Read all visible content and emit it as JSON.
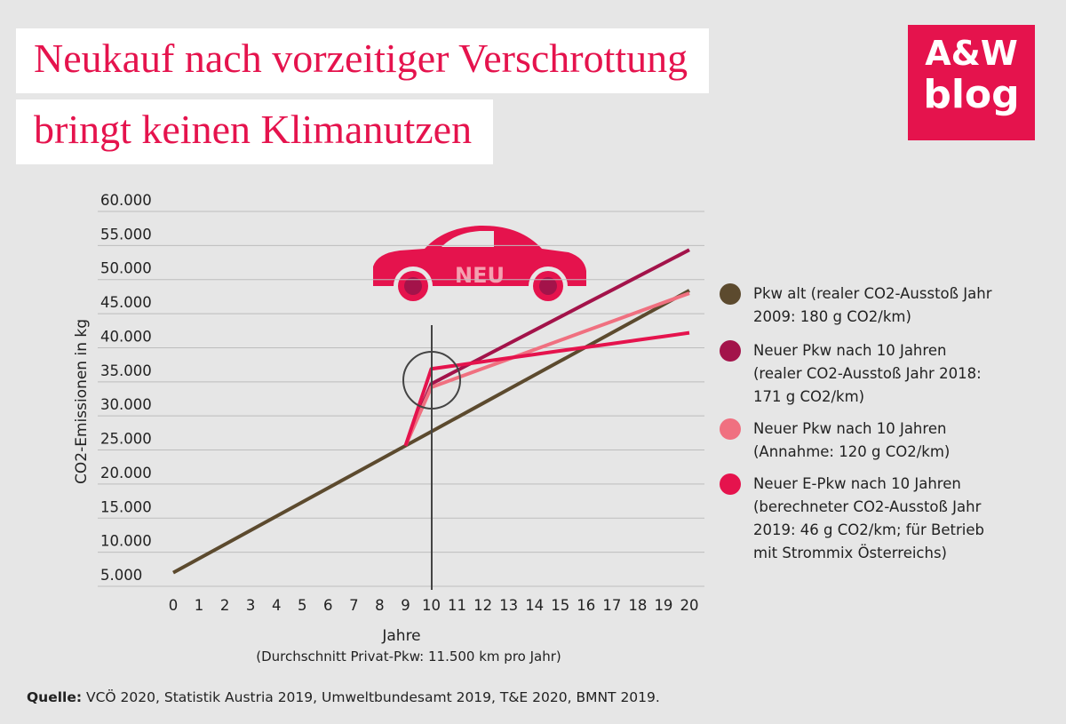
{
  "chart_data": {
    "type": "line",
    "title": "Neukauf nach vorzeitiger Verschrottung bringt keinen Klimanutzen",
    "y_label": "CO2-Emissionen in kg",
    "x_label": "Jahre",
    "x_sublabel": "(Durchschnitt Privat-Pkw: 11.500 km pro Jahr)",
    "annotations": [
      "NEU"
    ],
    "x": [
      0,
      1,
      2,
      3,
      4,
      5,
      6,
      7,
      8,
      9,
      10,
      11,
      12,
      13,
      14,
      15,
      16,
      17,
      18,
      19,
      20
    ],
    "xlim": [
      0,
      20
    ],
    "xticks": [
      0,
      1,
      2,
      3,
      4,
      5,
      6,
      7,
      8,
      9,
      10,
      11,
      12,
      13,
      14,
      15,
      16,
      17,
      18,
      19,
      20
    ],
    "ylim": [
      5000,
      60000
    ],
    "yticks": [
      {
        "value": 5000,
        "label": "5.000"
      },
      {
        "value": 10000,
        "label": "10.000"
      },
      {
        "value": 15000,
        "label": "15.000"
      },
      {
        "value": 20000,
        "label": "20.000"
      },
      {
        "value": 25000,
        "label": "25.000"
      },
      {
        "value": 30000,
        "label": "30.000"
      },
      {
        "value": 35000,
        "label": "35.000"
      },
      {
        "value": 40000,
        "label": "40.000"
      },
      {
        "value": 45000,
        "label": "45.000"
      },
      {
        "value": 50000,
        "label": "50.000"
      },
      {
        "value": 55000,
        "label": "55.000"
      },
      {
        "value": 60000,
        "label": "60.000"
      }
    ],
    "grid": true,
    "series": [
      {
        "name": "Pkw alt (realer CO2-Ausstoß Jahr 2009: 180 g CO2/km)",
        "color": "#5c4a2e",
        "values": [
          7000,
          9070,
          11140,
          13210,
          15280,
          17350,
          19420,
          21490,
          23560,
          25630,
          27700,
          29770,
          31840,
          33910,
          35980,
          38050,
          40120,
          42190,
          44260,
          46330,
          48400
        ]
      },
      {
        "name": "Neuer Pkw nach 10 Jahren (realer CO2-Ausstoß Jahr 2018: 171 g CO2/km)",
        "color": "#a3134a",
        "values": [
          null,
          null,
          null,
          null,
          null,
          null,
          null,
          null,
          null,
          25630,
          34700,
          36670,
          38630,
          40600,
          42560,
          44530,
          46500,
          48460,
          50430,
          52390,
          54360
        ]
      },
      {
        "name": "Neuer Pkw nach 10 Jahren (Annahme: 120 g CO2/km)",
        "color": "#f07080",
        "values": [
          null,
          null,
          null,
          null,
          null,
          null,
          null,
          null,
          null,
          25630,
          34200,
          35580,
          36960,
          38340,
          39720,
          41100,
          42480,
          43860,
          45240,
          46620,
          48000
        ]
      },
      {
        "name": "Neuer E-Pkw nach 10 Jahren (berechneter CO2-Ausstoß Jahr 2019: 46 g CO2/km; für Betrieb mit Strommix Österreichs)",
        "color": "#e5134d",
        "values": [
          null,
          null,
          null,
          null,
          null,
          null,
          null,
          null,
          null,
          25630,
          36900,
          37430,
          37960,
          38490,
          39020,
          39550,
          40070,
          40600,
          41130,
          41660,
          42190
        ]
      }
    ]
  },
  "logo": {
    "line1": "A&W",
    "line2": "blog"
  },
  "source": {
    "label": "Quelle:",
    "text": "VCÖ 2020, Statistik Austria 2019, Umweltbundesamt 2019, T&E 2020, BMNT 2019."
  }
}
